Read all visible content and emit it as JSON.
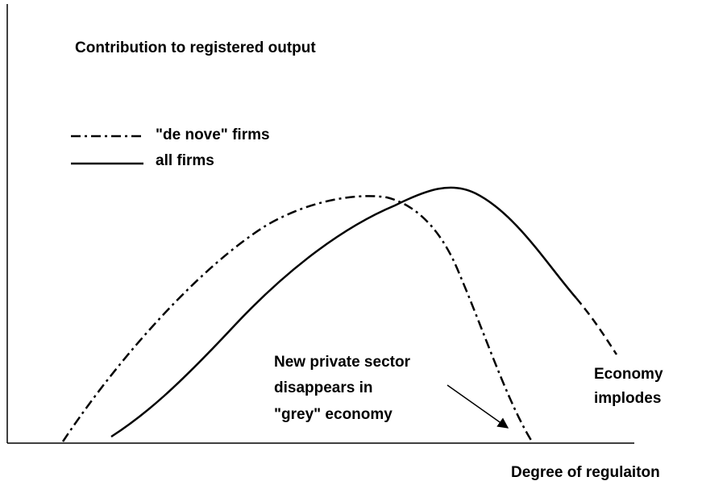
{
  "title": "Contribution to registered output",
  "legend": [
    {
      "label": "\"de nove\" firms"
    },
    {
      "label": "all firms"
    }
  ],
  "annotations": {
    "grey": [
      "New private sector",
      "disappears in",
      "\"grey\" economy"
    ],
    "implodes": [
      "Economy",
      "implodes"
    ]
  },
  "x_axis_label": "Degree of regulaiton"
}
